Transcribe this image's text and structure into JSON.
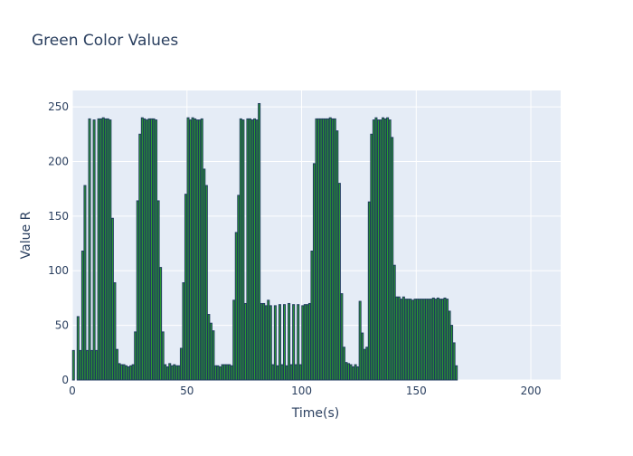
{
  "chart_data": {
    "type": "bar",
    "title": "Green Color Values",
    "xlabel": "Time(s)",
    "ylabel": "Value R",
    "xlim": [
      0,
      213
    ],
    "ylim": [
      0,
      265
    ],
    "xticks": [
      0,
      50,
      100,
      150,
      200
    ],
    "yticks": [
      0,
      50,
      100,
      150,
      200,
      250
    ],
    "grid": true,
    "colors": {
      "plot_bg": "#e5ecf6",
      "grid": "#ffffff",
      "bar_fill": "#2ca02c",
      "bar_edge": "#1f3a5f",
      "text": "#2a3f5f"
    },
    "series": [
      {
        "values": [
          27,
          0,
          58,
          27,
          118,
          178,
          27,
          239,
          27,
          238,
          27,
          239,
          239,
          240,
          239,
          239,
          238,
          148,
          89,
          28,
          15,
          14,
          14,
          13,
          12,
          13,
          14,
          44,
          164,
          225,
          240,
          239,
          238,
          239,
          239,
          239,
          238,
          164,
          103,
          44,
          14,
          12,
          15,
          13,
          14,
          13,
          13,
          29,
          89,
          170,
          240,
          238,
          240,
          239,
          238,
          238,
          239,
          193,
          178,
          60,
          52,
          45,
          13,
          13,
          12,
          14,
          14,
          14,
          14,
          13,
          73,
          135,
          169,
          239,
          238,
          70,
          239,
          239,
          238,
          239,
          238,
          253,
          70,
          70,
          68,
          73,
          68,
          14,
          68,
          13,
          69,
          14,
          69,
          13,
          70,
          14,
          69,
          14,
          69,
          14,
          68,
          69,
          69,
          70,
          118,
          198,
          239,
          239,
          239,
          239,
          239,
          239,
          240,
          239,
          239,
          228,
          180,
          79,
          30,
          16,
          15,
          14,
          12,
          14,
          12,
          72,
          43,
          28,
          30,
          163,
          225,
          238,
          240,
          238,
          238,
          240,
          239,
          240,
          238,
          222,
          105,
          76,
          76,
          74,
          76,
          74,
          74,
          74,
          73,
          74,
          74,
          74,
          74,
          74,
          74,
          74,
          74,
          75,
          74,
          75,
          74,
          74,
          75,
          74,
          63,
          50,
          34,
          13
        ]
      }
    ]
  }
}
